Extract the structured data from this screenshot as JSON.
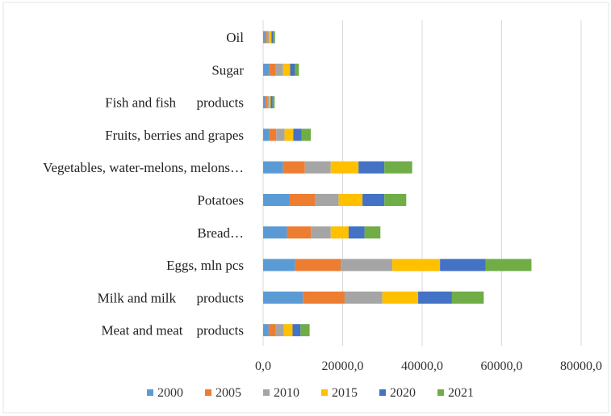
{
  "chart_data": {
    "type": "bar",
    "orientation": "horizontal",
    "stacked": true,
    "title": "",
    "xlabel": "",
    "ylabel": "",
    "xlim": [
      0,
      80000
    ],
    "grid": true,
    "legend_position": "bottom",
    "categories": [
      "Oil",
      "Sugar",
      "Fish and fish      products",
      "Fruits, berries and grapes",
      "Vegetables, water-melons, melons…",
      "Potatoes",
      "Bread…",
      "Eggs, mln pcs",
      "Milk and milk      products",
      "Meat and meat    products"
    ],
    "x_ticks": [
      "0,0",
      "20000,0",
      "40000,0",
      "60000,0",
      "80000,0"
    ],
    "x_tick_values": [
      0,
      20000,
      40000,
      60000,
      80000
    ],
    "series": [
      {
        "name": "2000",
        "color": "#5b9bd5",
        "values": [
          400,
          1500,
          500,
          1500,
          5000,
          6500,
          6000,
          8000,
          10000,
          1400
        ]
      },
      {
        "name": "2005",
        "color": "#ed7d31",
        "values": [
          500,
          1700,
          500,
          1800,
          5500,
          6500,
          6000,
          11500,
          10500,
          1800
        ]
      },
      {
        "name": "2010",
        "color": "#a5a5a5",
        "values": [
          600,
          1800,
          500,
          2100,
          6500,
          6000,
          5000,
          13000,
          9500,
          2000
        ]
      },
      {
        "name": "2015",
        "color": "#ffc000",
        "values": [
          600,
          1800,
          400,
          2200,
          7000,
          6000,
          4500,
          12000,
          9000,
          2200
        ]
      },
      {
        "name": "2020",
        "color": "#4472c4",
        "values": [
          500,
          1200,
          500,
          2100,
          6500,
          5500,
          4000,
          11500,
          8500,
          2000
        ]
      },
      {
        "name": "2021",
        "color": "#70ad47",
        "values": [
          400,
          1000,
          500,
          2300,
          7000,
          5500,
          4000,
          11500,
          8000,
          2300
        ]
      }
    ]
  }
}
